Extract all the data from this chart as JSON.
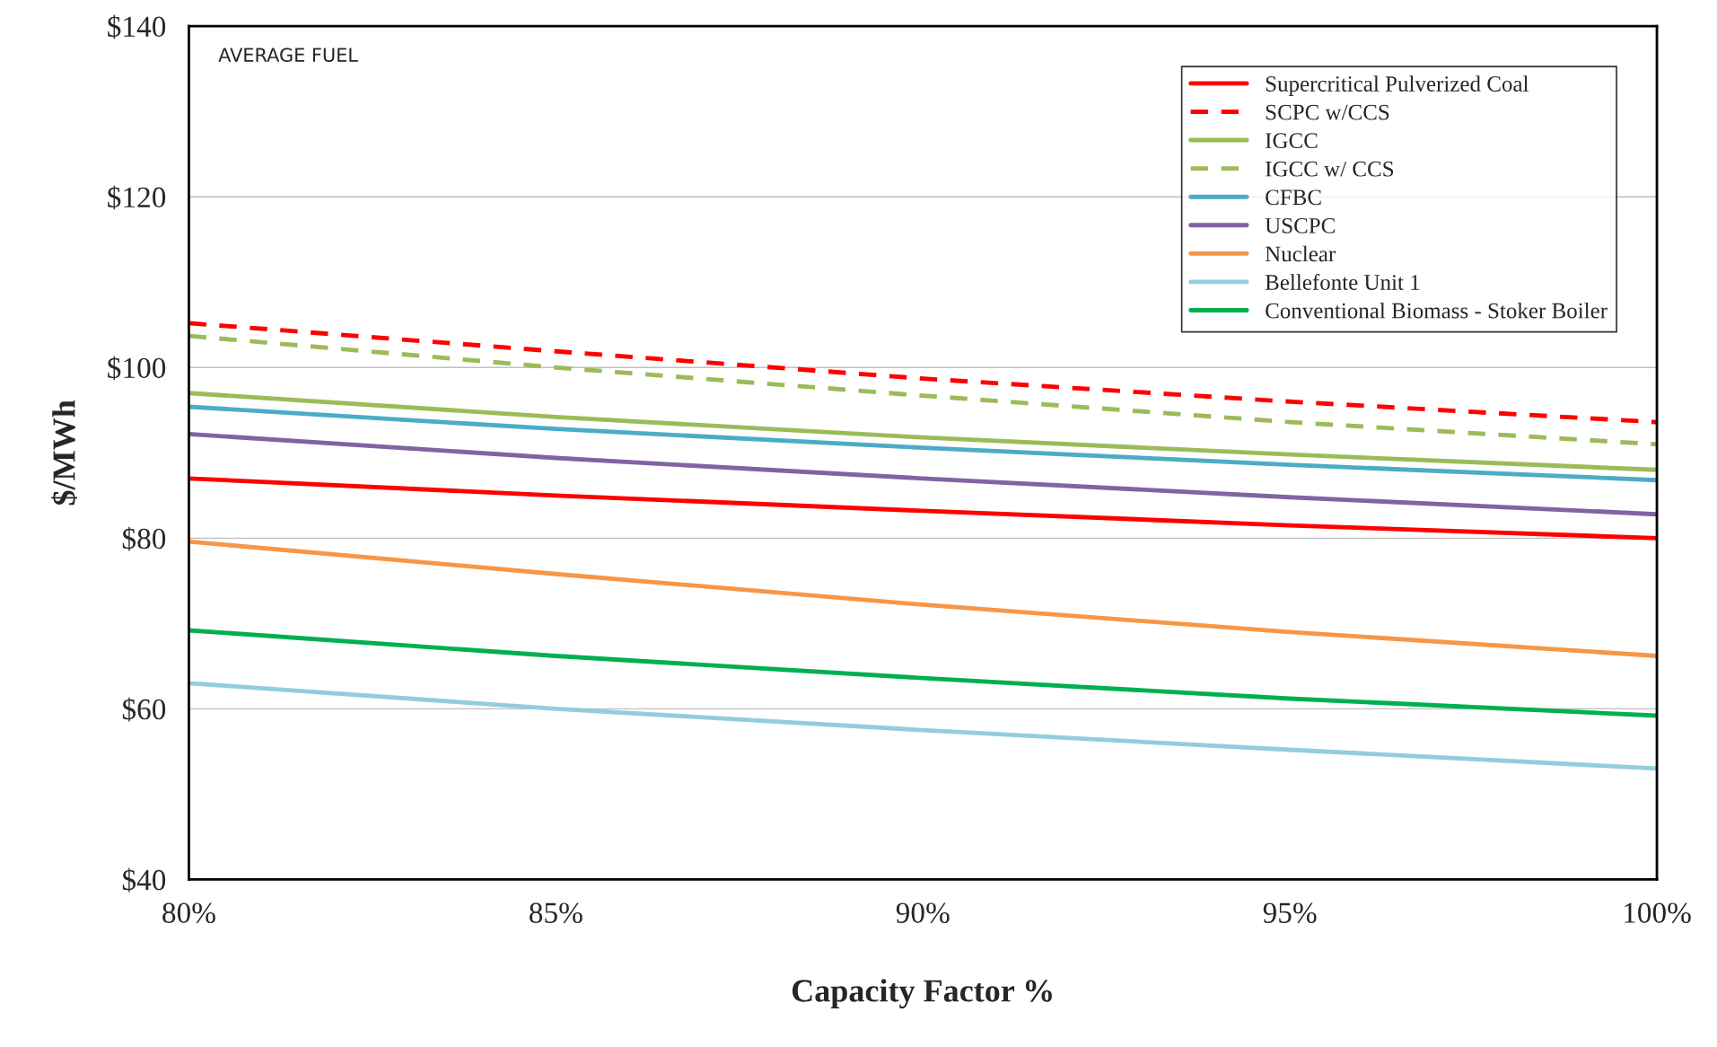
{
  "chart_data": {
    "type": "line",
    "xlabel": "Capacity Factor %",
    "ylabel": "$/MWh",
    "annotations": [
      "AVERAGE FUEL"
    ],
    "x": [
      80,
      85,
      90,
      95,
      100
    ],
    "xlim": [
      80,
      100
    ],
    "xticks": [
      {
        "value": 80,
        "label": "80%"
      },
      {
        "value": 85,
        "label": "85%"
      },
      {
        "value": 90,
        "label": "90%"
      },
      {
        "value": 95,
        "label": "95%"
      },
      {
        "value": 100,
        "label": "100%"
      }
    ],
    "ylim": [
      40,
      140
    ],
    "yticks": [
      {
        "value": 40,
        "label": "$40"
      },
      {
        "value": 60,
        "label": "$60"
      },
      {
        "value": 80,
        "label": "$80"
      },
      {
        "value": 100,
        "label": "$100"
      },
      {
        "value": 120,
        "label": "$120"
      },
      {
        "value": 140,
        "label": "$140"
      }
    ],
    "grid": "y",
    "legend": "top right",
    "marker": "none",
    "series": [
      {
        "name": "Supercritical Pulverized Coal",
        "color": "#ff0000",
        "values": [
          87.0,
          85.0,
          83.2,
          81.5,
          80.0
        ]
      },
      {
        "name": "SCPC w/CCS",
        "color": "#ff0000",
        "line_style": "dashed",
        "values": [
          105.2,
          101.9,
          98.7,
          96.0,
          93.6
        ]
      },
      {
        "name": "IGCC",
        "color": "#9bbb59",
        "values": [
          97.0,
          94.2,
          91.8,
          89.8,
          88.0
        ]
      },
      {
        "name": "IGCC w/ CCS",
        "color": "#9bbb59",
        "line_style": "dashed",
        "values": [
          103.7,
          100.0,
          96.7,
          93.6,
          91.0
        ]
      },
      {
        "name": "CFBC",
        "color": "#4bacc6",
        "values": [
          95.4,
          92.8,
          90.6,
          88.6,
          86.8
        ]
      },
      {
        "name": "USCPC",
        "color": "#8064a2",
        "values": [
          92.2,
          89.4,
          87.0,
          84.8,
          82.8
        ]
      },
      {
        "name": "Nuclear",
        "color": "#f79646",
        "values": [
          79.6,
          75.8,
          72.2,
          69.0,
          66.2
        ]
      },
      {
        "name": "Bellefonte Unit 1",
        "color": "#93cddd",
        "values": [
          63.0,
          60.0,
          57.5,
          55.2,
          53.0
        ]
      },
      {
        "name": "Conventional Biomass - Stoker Boiler",
        "color": "#00b050",
        "values": [
          69.2,
          66.2,
          63.6,
          61.2,
          59.2
        ]
      }
    ]
  }
}
